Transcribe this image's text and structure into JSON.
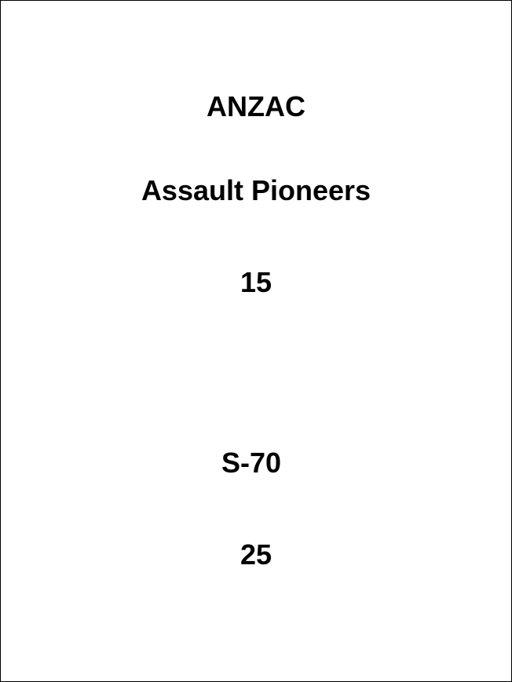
{
  "card": {
    "lines": [
      "ANZAC",
      "Assault Pioneers",
      "15",
      "S-70",
      "25"
    ]
  }
}
